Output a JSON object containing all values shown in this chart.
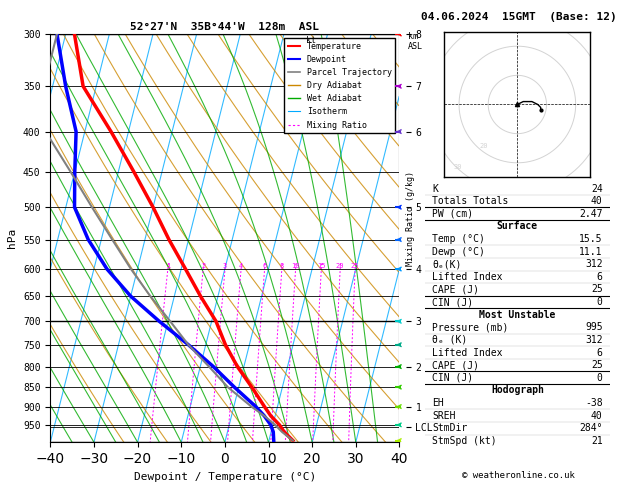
{
  "title": "52°27'N  35B°44'W  128m  ASL",
  "date_title": "04.06.2024  15GMT  (Base: 12)",
  "xlabel": "Dewpoint / Temperature (°C)",
  "ylabel_left": "hPa",
  "temp_profile": {
    "pressure": [
      995,
      970,
      950,
      925,
      900,
      850,
      800,
      750,
      700,
      650,
      600,
      550,
      500,
      450,
      400,
      350,
      300
    ],
    "temperature": [
      15.5,
      13.0,
      11.5,
      9.0,
      7.0,
      3.0,
      -1.5,
      -5.5,
      -9.0,
      -14.0,
      -19.0,
      -24.5,
      -30.0,
      -36.5,
      -44.0,
      -53.0,
      -58.0
    ]
  },
  "dewpoint_profile": {
    "pressure": [
      995,
      970,
      950,
      925,
      900,
      850,
      800,
      750,
      700,
      650,
      600,
      550,
      500,
      450,
      400,
      350,
      300
    ],
    "dewpoint": [
      11.1,
      10.5,
      9.5,
      7.5,
      5.0,
      -1.0,
      -7.0,
      -14.0,
      -22.0,
      -30.0,
      -37.0,
      -43.0,
      -48.0,
      -50.0,
      -52.0,
      -57.0,
      -62.0
    ]
  },
  "parcel_profile": {
    "pressure": [
      995,
      970,
      950,
      925,
      900,
      850,
      800,
      750,
      700,
      650,
      600,
      550,
      500,
      450,
      400,
      350,
      300
    ],
    "temperature": [
      15.5,
      12.5,
      10.5,
      7.5,
      4.0,
      -2.5,
      -8.0,
      -14.0,
      -19.5,
      -25.5,
      -31.5,
      -37.5,
      -44.0,
      -51.0,
      -59.0,
      -62.0,
      -62.0
    ]
  },
  "lcl_pressure": 955,
  "skew_factor": 45.0,
  "temp_min": -40,
  "temp_max": 40,
  "mixing_ratio_lines": [
    1,
    2,
    3,
    4,
    6,
    8,
    10,
    15,
    20,
    25
  ],
  "km_ticks_p": [
    300,
    350,
    400,
    500,
    600,
    700,
    800,
    900,
    955
  ],
  "km_ticks_v": [
    "8",
    "7",
    "6",
    "5",
    "4",
    "3",
    "2",
    "1",
    "LCL"
  ],
  "colors": {
    "temperature": "#ff0000",
    "dewpoint": "#0000ff",
    "parcel": "#808080",
    "dry_adiabat": "#cc8800",
    "wet_adiabat": "#00aa00",
    "isotherm": "#00aaff",
    "mixing_ratio": "#ff00ff"
  },
  "stats_panel": {
    "K": "24",
    "Totals_Totals": "40",
    "PW_cm": "2.47",
    "Surface_Temp": "15.5",
    "Surface_Dewp": "11.1",
    "Surface_theta_e": "312",
    "Surface_LI": "6",
    "Surface_CAPE": "25",
    "Surface_CIN": "0",
    "MU_Pressure": "995",
    "MU_theta_e": "312",
    "MU_LI": "6",
    "MU_CAPE": "25",
    "MU_CIN": "0",
    "Hodo_EH": "-38",
    "Hodo_SREH": "40",
    "Hodo_StmDir": "284°",
    "Hodo_StmSpd": "21"
  },
  "wind_barb_colors": {
    "300": "#ff0000",
    "350": "#ff4400",
    "400": "#cc6600",
    "450": "#888800",
    "500": "#006600",
    "550": "#0000cc",
    "600": "#0055ff",
    "650": "#0099ff",
    "700": "#00cccc",
    "750": "#00cc88",
    "800": "#00aa00",
    "850": "#00cc00",
    "900": "#44dd00",
    "950": "#88ee00",
    "995": "#ccff00"
  }
}
